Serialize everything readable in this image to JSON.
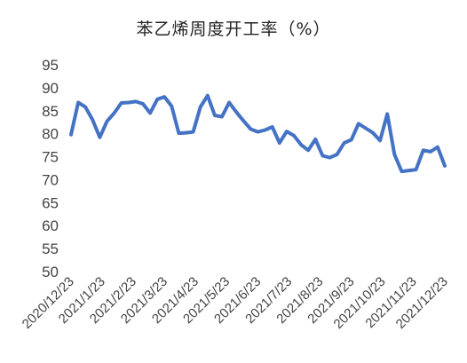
{
  "chart_data": {
    "type": "line",
    "title": "苯乙烯周度开工率（%）",
    "xlabel": "",
    "ylabel": "",
    "ylim": [
      50,
      95
    ],
    "yticks": [
      50,
      55,
      60,
      65,
      70,
      75,
      80,
      85,
      90,
      95
    ],
    "grid": false,
    "legend": "none",
    "line_color": "#4472C4",
    "x_tick_labels": [
      "2020/12/23",
      "2021/1/23",
      "2021/2/23",
      "2021/3/23",
      "2021/4/23",
      "2021/5/23",
      "2021/6/23",
      "2021/7/23",
      "2021/8/23",
      "2021/9/23",
      "2021/10/23",
      "2021/11/23",
      "2021/12/23"
    ],
    "series": [
      {
        "values": [
          79.8,
          86.8,
          85.8,
          83.0,
          79.2,
          82.7,
          84.5,
          86.7,
          86.8,
          87.0,
          86.5,
          84.5,
          87.5,
          88.0,
          86.0,
          80.1,
          80.2,
          80.4,
          85.8,
          88.3,
          84.0,
          83.7,
          86.8,
          84.7,
          82.8,
          81.0,
          80.4,
          80.8,
          81.5,
          78.0,
          80.5,
          79.6,
          77.6,
          76.4,
          78.8,
          75.2,
          74.8,
          75.5,
          78.0,
          78.7,
          82.2,
          81.2,
          80.2,
          78.5,
          84.3,
          75.5,
          71.8,
          72.0,
          72.2,
          76.4,
          76.1,
          77.1,
          73.0
        ]
      }
    ]
  }
}
